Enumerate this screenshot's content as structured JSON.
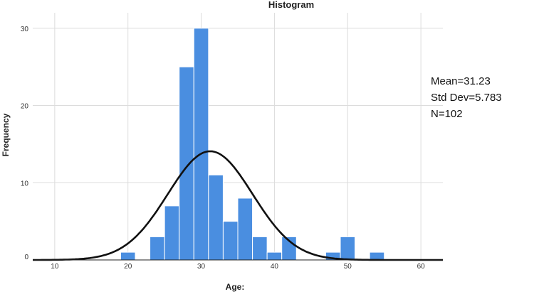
{
  "chart_data": {
    "type": "bar",
    "title": "Histogram",
    "xlabel": "Age:",
    "ylabel": "Frequency",
    "xlim": [
      7,
      63
    ],
    "ylim": [
      0,
      32
    ],
    "x_ticks": [
      10,
      20,
      30,
      40,
      50,
      60
    ],
    "y_ticks": [
      0,
      10,
      20,
      30
    ],
    "grid": true,
    "bin_width": 2,
    "bins": [
      {
        "start": 19,
        "end": 21,
        "count": 1
      },
      {
        "start": 23,
        "end": 25,
        "count": 3
      },
      {
        "start": 25,
        "end": 27,
        "count": 7
      },
      {
        "start": 27,
        "end": 29,
        "count": 25
      },
      {
        "start": 29,
        "end": 31,
        "count": 30
      },
      {
        "start": 31,
        "end": 33,
        "count": 11
      },
      {
        "start": 33,
        "end": 35,
        "count": 5
      },
      {
        "start": 35,
        "end": 37,
        "count": 8
      },
      {
        "start": 37,
        "end": 39,
        "count": 3
      },
      {
        "start": 39,
        "end": 41,
        "count": 1
      },
      {
        "start": 41,
        "end": 43,
        "count": 3
      },
      {
        "start": 47,
        "end": 49,
        "count": 1
      },
      {
        "start": 49,
        "end": 51,
        "count": 3
      },
      {
        "start": 53,
        "end": 55,
        "count": 1
      }
    ],
    "normal_curve": {
      "mean": 31.23,
      "std": 5.783,
      "n": 102
    },
    "bar_color": "#4a8ee0",
    "curve_color": "#111111"
  },
  "stats": {
    "mean": "Mean=31.23",
    "std": "Std Dev=5.783",
    "n": "N=102"
  }
}
